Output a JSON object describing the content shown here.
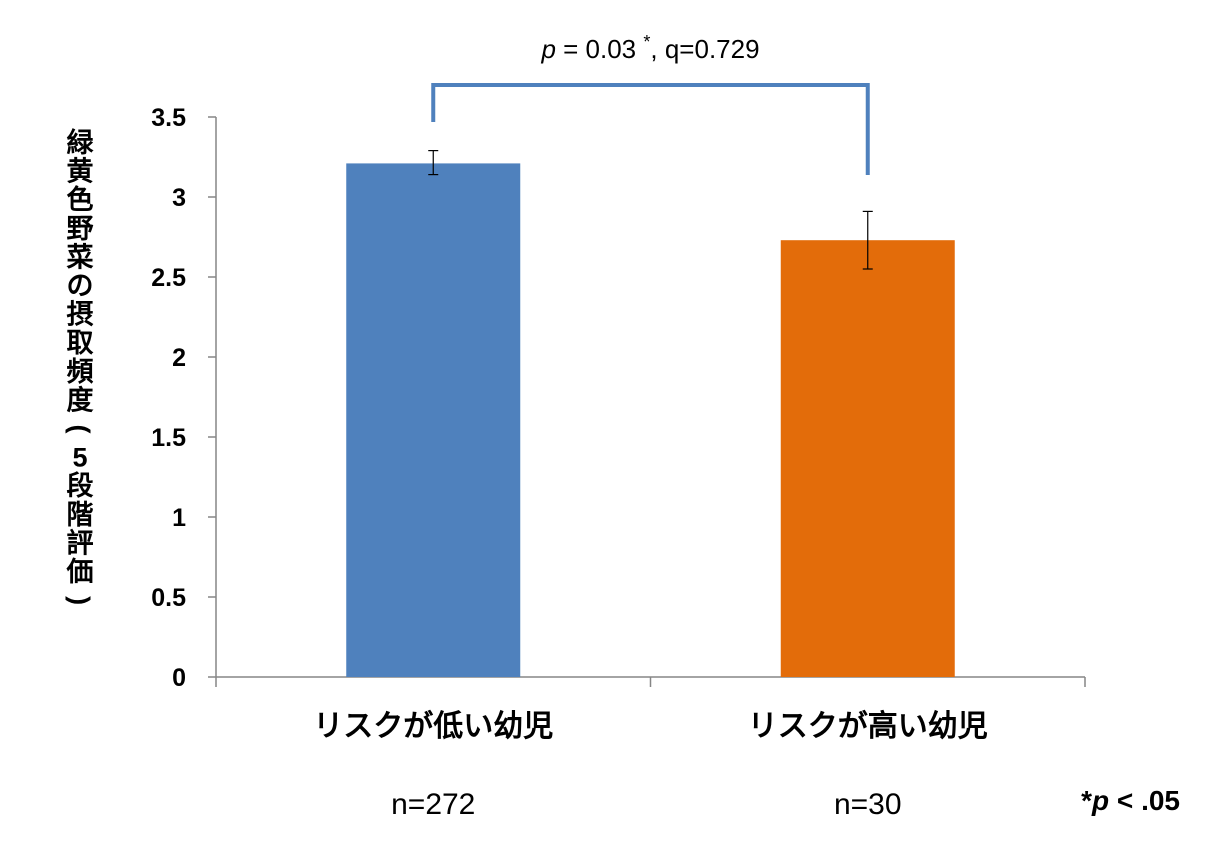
{
  "chart_data": {
    "type": "bar",
    "categories": [
      "リスクが低い幼児",
      "リスクが高い幼児"
    ],
    "values": [
      3.21,
      2.73
    ],
    "error_bars": [
      {
        "low": 3.14,
        "high": 3.29
      },
      {
        "low": 2.55,
        "high": 2.91
      }
    ],
    "sample_sizes": [
      "n=272",
      "n=30"
    ],
    "colors": [
      "#4f81bd",
      "#e36c0a"
    ],
    "bracket_color": "#4f81bd",
    "ylabel": "緑黄色野菜の摂取頻度(5段階評価)",
    "ylim": [
      0,
      3.5
    ],
    "yticks": [
      {
        "value": 0,
        "label": "0"
      },
      {
        "value": 0.5,
        "label": "0.5"
      },
      {
        "value": 1,
        "label": "1"
      },
      {
        "value": 1.5,
        "label": "1.5"
      },
      {
        "value": 2,
        "label": "2"
      },
      {
        "value": 2.5,
        "label": "2.5"
      },
      {
        "value": 3,
        "label": "3"
      },
      {
        "value": 3.5,
        "label": "3.5"
      }
    ],
    "grid": false,
    "legend": "none",
    "annotation": {
      "p_symbol": "p",
      "p_value": " = 0.03",
      "star": "*",
      "q_text": ",  q=0.729"
    },
    "footnote": {
      "star": "*",
      "p_symbol": "p",
      "text": " < .05"
    }
  }
}
